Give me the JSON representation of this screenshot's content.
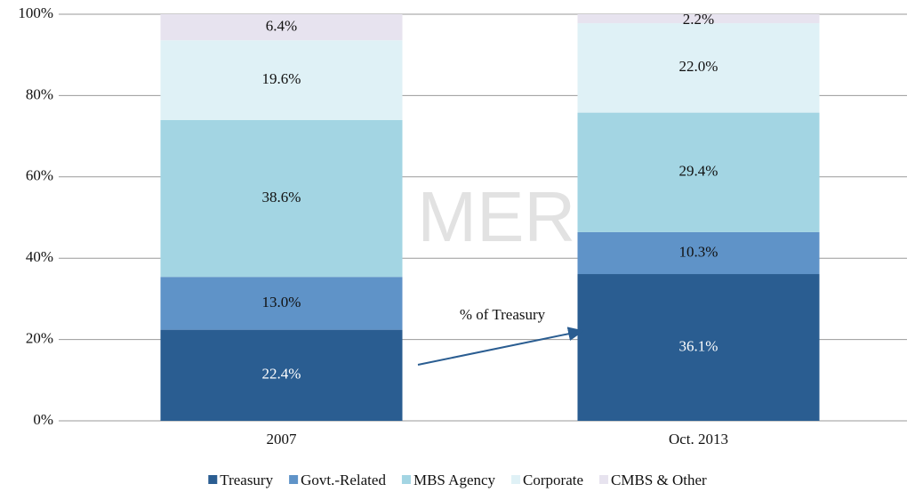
{
  "chart_data": {
    "type": "stacked_bar",
    "categories": [
      "2007",
      "Oct. 2013"
    ],
    "series": [
      {
        "name": "Treasury",
        "color": "#2a5d91",
        "values": [
          22.4,
          36.1
        ],
        "value_labels": [
          "22.4%",
          "36.1%"
        ]
      },
      {
        "name": "Govt.-Related",
        "color": "#5f93c8",
        "values": [
          13.0,
          10.3
        ],
        "value_labels": [
          "13.0%",
          "10.3%"
        ]
      },
      {
        "name": "MBS Agency",
        "color": "#a3d5e3",
        "values": [
          38.6,
          29.4
        ],
        "value_labels": [
          "38.6%",
          "29.4%"
        ]
      },
      {
        "name": "Corporate",
        "color": "#dff1f6",
        "values": [
          19.6,
          22.0
        ],
        "value_labels": [
          "19.6%",
          "22.0%"
        ]
      },
      {
        "name": "CMBS & Other",
        "color": "#e7e3ef",
        "values": [
          6.4,
          2.2
        ],
        "value_labels": [
          "6.4%",
          "2.2%"
        ]
      }
    ],
    "ylim": [
      0,
      100
    ],
    "yticks": [
      {
        "value": 0,
        "label": "0%"
      },
      {
        "value": 20,
        "label": "20%"
      },
      {
        "value": 40,
        "label": "40%"
      },
      {
        "value": 60,
        "label": "60%"
      },
      {
        "value": 80,
        "label": "80%"
      },
      {
        "value": 100,
        "label": "100%"
      }
    ],
    "grid": true,
    "legend": "bottom",
    "annotation": "% of Treasury",
    "watermark": "MERK"
  }
}
